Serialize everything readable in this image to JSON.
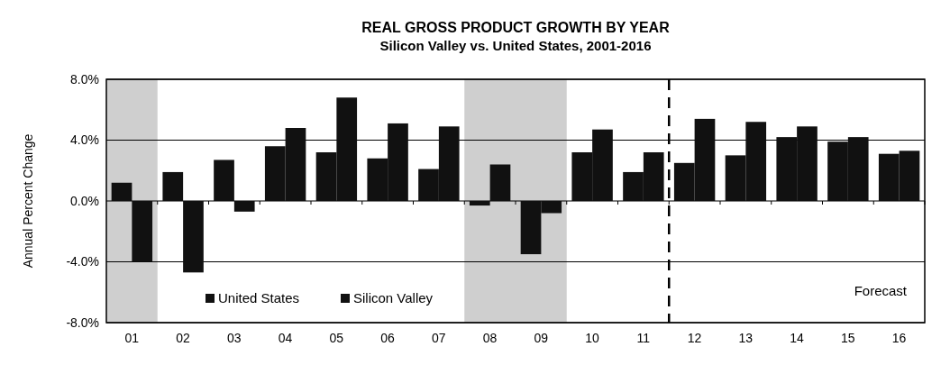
{
  "chart_data": {
    "type": "bar",
    "title": "REAL GROSS PRODUCT GROWTH BY YEAR",
    "subtitle": "Silicon Valley vs. United States, 2001-2016",
    "ylabel": "Annual Percent Change",
    "categories": [
      "01",
      "02",
      "03",
      "04",
      "05",
      "06",
      "07",
      "08",
      "09",
      "10",
      "11",
      "12",
      "13",
      "14",
      "15",
      "16"
    ],
    "series": [
      {
        "name": "United States",
        "color": "#111111",
        "values": [
          1.2,
          1.9,
          2.7,
          3.6,
          3.2,
          2.8,
          2.1,
          -0.3,
          -3.5,
          3.2,
          1.9,
          2.5,
          3.0,
          4.2,
          3.9,
          3.1
        ]
      },
      {
        "name": "Silicon Valley",
        "color": "#111111",
        "values": [
          -4.0,
          -4.7,
          -0.7,
          4.8,
          6.8,
          5.1,
          4.9,
          2.4,
          -0.8,
          4.7,
          3.2,
          5.4,
          5.2,
          4.9,
          4.2,
          3.3
        ]
      }
    ],
    "ylim": [
      -8,
      8
    ],
    "yticks": [
      {
        "value": -8,
        "label": "-8.0%"
      },
      {
        "value": -4,
        "label": "-4.0%"
      },
      {
        "value": 0,
        "label": "0.0%"
      },
      {
        "value": 4,
        "label": "4.0%"
      },
      {
        "value": 8,
        "label": "8.0%"
      }
    ],
    "grid": "y",
    "legend": "bottom left",
    "bands": [
      {
        "axis": "x",
        "from": "01",
        "to": "01",
        "color": "#cfcfcf"
      },
      {
        "axis": "x",
        "from": "08",
        "to": "09",
        "color": "#cfcfcf"
      }
    ],
    "ref_lines": [
      {
        "axis": "x",
        "value": "12",
        "color": "#000000",
        "line_style": "dashed"
      }
    ],
    "annotations": [
      "Forecast"
    ]
  }
}
